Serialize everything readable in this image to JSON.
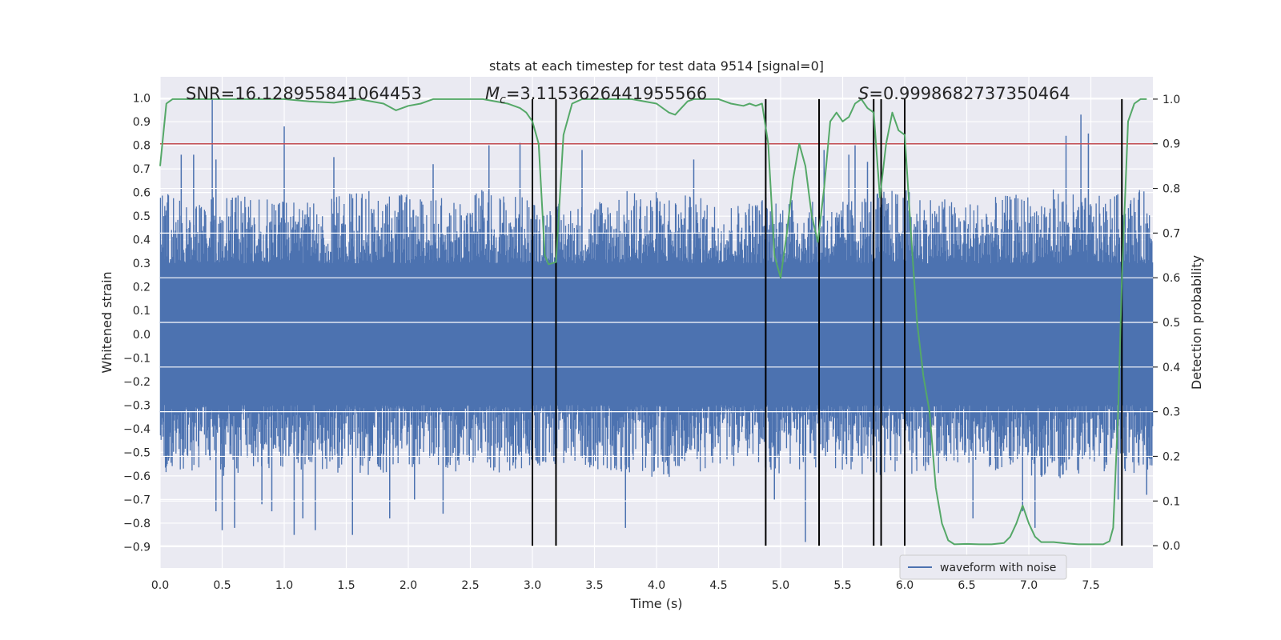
{
  "chart_data": {
    "type": "line",
    "title": "stats at each timestep for test data 9514 [signal=0]",
    "xlabel": "Time (s)",
    "ylabel_left": "Whitened strain",
    "ylabel_right": "Detection probability",
    "xlim": [
      0.0,
      8.0
    ],
    "ylim_left": [
      -0.99,
      1.09
    ],
    "ylim_right": [
      -0.05,
      1.05
    ],
    "x_ticks": [
      0.0,
      0.5,
      1.0,
      1.5,
      2.0,
      2.5,
      3.0,
      3.5,
      4.0,
      4.5,
      5.0,
      5.5,
      6.0,
      6.5,
      7.0,
      7.5
    ],
    "x_tick_labels": [
      "0.0",
      "0.5",
      "1.0",
      "1.5",
      "2.0",
      "2.5",
      "3.0",
      "3.5",
      "4.0",
      "4.5",
      "5.0",
      "5.5",
      "6.0",
      "6.5",
      "7.0",
      "7.5"
    ],
    "y_left_ticks": [
      1.0,
      0.9,
      0.8,
      0.7,
      0.6,
      0.5,
      0.4,
      0.3,
      0.2,
      0.1,
      0.0,
      -0.1,
      -0.2,
      -0.3,
      -0.4,
      -0.5,
      -0.6,
      -0.7,
      -0.8,
      -0.9
    ],
    "y_left_tick_labels": [
      "1.0",
      "0.9",
      "0.8",
      "0.7",
      "0.6",
      "0.5",
      "0.4",
      "0.3",
      "0.2",
      "0.1",
      "0.0",
      "−0.1",
      "−0.2",
      "−0.3",
      "−0.4",
      "−0.5",
      "−0.6",
      "−0.7",
      "−0.8",
      "−0.9"
    ],
    "y_right_ticks": [
      1.0,
      0.9,
      0.8,
      0.7,
      0.6,
      0.5,
      0.4,
      0.3,
      0.2,
      0.1,
      0.0
    ],
    "y_right_tick_labels": [
      "1.0",
      "0.9",
      "0.8",
      "0.7",
      "0.6",
      "0.5",
      "0.4",
      "0.3",
      "0.2",
      "0.1",
      "0.0"
    ],
    "grid": true,
    "threshold": {
      "value_right_axis": 0.9,
      "color": "#c44e52"
    },
    "vertical_markers": [
      3.0,
      3.19,
      4.88,
      5.31,
      5.75,
      5.81,
      6.0,
      7.75
    ],
    "vertical_marker_range_right": [
      0.0,
      1.0
    ],
    "series": [
      {
        "name": "waveform with noise",
        "axis": "left",
        "color": "#4c72b0",
        "style": "noise-envelope",
        "envelope_upper": [
          0.62,
          0.55,
          0.6,
          0.58,
          0.56,
          0.57,
          0.6,
          0.62,
          0.58,
          0.58,
          0.62,
          0.6,
          0.56,
          0.55,
          0.6,
          0.62,
          0.6,
          0.58,
          0.56,
          0.6,
          0.57,
          0.55,
          0.6,
          0.62,
          0.6,
          0.56,
          0.58,
          0.6,
          0.62,
          0.58,
          0.6,
          0.62
        ],
        "envelope_lower": [
          -0.62,
          -0.58,
          -0.6,
          -0.6,
          -0.58,
          -0.57,
          -0.6,
          -0.6,
          -0.58,
          -0.58,
          -0.6,
          -0.6,
          -0.56,
          -0.56,
          -0.58,
          -0.6,
          -0.62,
          -0.58,
          -0.56,
          -0.6,
          -0.58,
          -0.58,
          -0.6,
          -0.6,
          -0.6,
          -0.56,
          -0.58,
          -0.6,
          -0.62,
          -0.58,
          -0.6,
          -0.6
        ],
        "spikes": [
          [
            0.03,
            0.5
          ],
          [
            0.42,
            1.0
          ],
          [
            0.45,
            -0.75
          ],
          [
            0.5,
            -0.83
          ],
          [
            0.6,
            -0.82
          ],
          [
            0.17,
            0.76
          ],
          [
            0.27,
            0.76
          ],
          [
            0.45,
            0.74
          ],
          [
            0.82,
            -0.72
          ],
          [
            0.9,
            -0.75
          ],
          [
            1.0,
            0.88
          ],
          [
            1.08,
            -0.85
          ],
          [
            1.15,
            -0.78
          ],
          [
            1.25,
            -0.83
          ],
          [
            1.55,
            -0.85
          ],
          [
            1.85,
            -0.78
          ],
          [
            2.05,
            -0.7
          ],
          [
            2.28,
            -0.76
          ],
          [
            2.65,
            0.8
          ],
          [
            2.9,
            0.81
          ],
          [
            3.75,
            -0.82
          ],
          [
            4.95,
            -0.7
          ],
          [
            5.2,
            -0.88
          ],
          [
            5.35,
            0.78
          ],
          [
            5.55,
            0.76
          ],
          [
            5.7,
            0.73
          ],
          [
            6.0,
            -0.68
          ],
          [
            6.55,
            -0.78
          ],
          [
            6.95,
            -0.75
          ],
          [
            7.05,
            -0.82
          ],
          [
            7.3,
            0.84
          ],
          [
            7.42,
            0.93
          ],
          [
            7.48,
            0.85
          ],
          [
            7.72,
            -0.7
          ],
          [
            7.95,
            -0.68
          ],
          [
            3.4,
            0.78
          ],
          [
            4.3,
            0.74
          ],
          [
            2.2,
            0.72
          ],
          [
            1.4,
            0.75
          ],
          [
            5.6,
            0.8
          ]
        ]
      },
      {
        "name": "detection probability",
        "axis": "right",
        "color": "#55a868",
        "x": [
          0.0,
          0.05,
          0.1,
          0.2,
          0.4,
          0.6,
          0.8,
          1.0,
          1.2,
          1.4,
          1.6,
          1.8,
          1.9,
          2.0,
          2.1,
          2.2,
          2.4,
          2.6,
          2.8,
          2.9,
          2.95,
          3.0,
          3.05,
          3.1,
          3.13,
          3.19,
          3.25,
          3.32,
          3.4,
          3.6,
          3.8,
          4.0,
          4.1,
          4.15,
          4.2,
          4.25,
          4.3,
          4.35,
          4.4,
          4.5,
          4.6,
          4.7,
          4.75,
          4.8,
          4.85,
          4.9,
          4.95,
          5.0,
          5.05,
          5.1,
          5.15,
          5.2,
          5.25,
          5.3,
          5.35,
          5.4,
          5.45,
          5.5,
          5.55,
          5.6,
          5.65,
          5.7,
          5.75,
          5.8,
          5.85,
          5.9,
          5.95,
          6.0,
          6.05,
          6.1,
          6.15,
          6.2,
          6.25,
          6.3,
          6.35,
          6.4,
          6.5,
          6.6,
          6.7,
          6.8,
          6.85,
          6.9,
          6.95,
          7.0,
          7.05,
          7.1,
          7.2,
          7.3,
          7.4,
          7.5,
          7.6,
          7.65,
          7.68,
          7.72,
          7.75,
          7.8,
          7.85,
          7.9,
          7.95
        ],
        "y": [
          0.85,
          0.99,
          1.0,
          1.0,
          1.0,
          1.0,
          1.0,
          1.0,
          0.995,
          0.992,
          1.0,
          0.99,
          0.975,
          0.985,
          0.99,
          1.0,
          1.0,
          1.0,
          0.99,
          0.98,
          0.97,
          0.95,
          0.9,
          0.65,
          0.63,
          0.635,
          0.92,
          0.99,
          1.0,
          1.0,
          1.0,
          0.99,
          0.97,
          0.965,
          0.98,
          0.995,
          1.0,
          1.0,
          1.0,
          1.0,
          0.99,
          0.985,
          0.99,
          0.985,
          0.99,
          0.9,
          0.65,
          0.6,
          0.7,
          0.82,
          0.9,
          0.85,
          0.74,
          0.68,
          0.8,
          0.95,
          0.97,
          0.95,
          0.96,
          0.99,
          1.0,
          0.98,
          0.97,
          0.78,
          0.9,
          0.97,
          0.93,
          0.92,
          0.7,
          0.5,
          0.38,
          0.3,
          0.13,
          0.05,
          0.012,
          0.003,
          0.004,
          0.003,
          0.003,
          0.006,
          0.02,
          0.05,
          0.09,
          0.05,
          0.02,
          0.008,
          0.008,
          0.005,
          0.003,
          0.003,
          0.003,
          0.01,
          0.04,
          0.3,
          0.6,
          0.95,
          0.99,
          1.0,
          1.0
        ]
      }
    ],
    "legend": {
      "entries": [
        "waveform with noise"
      ],
      "placement": "lower-right"
    },
    "annotations": [
      {
        "text": "SNR=16.128955841064453",
        "position": "top-left"
      },
      {
        "text": "$M_c$=3.1153626441955566",
        "display_symbol": "M",
        "display_subscript": "c",
        "display_value": "=3.1153626441955566",
        "position": "top-center"
      },
      {
        "text": "$S$=0.9998682737350464",
        "display_symbol": "S",
        "display_value": "=0.9998682737350464",
        "position": "top-right"
      }
    ]
  }
}
